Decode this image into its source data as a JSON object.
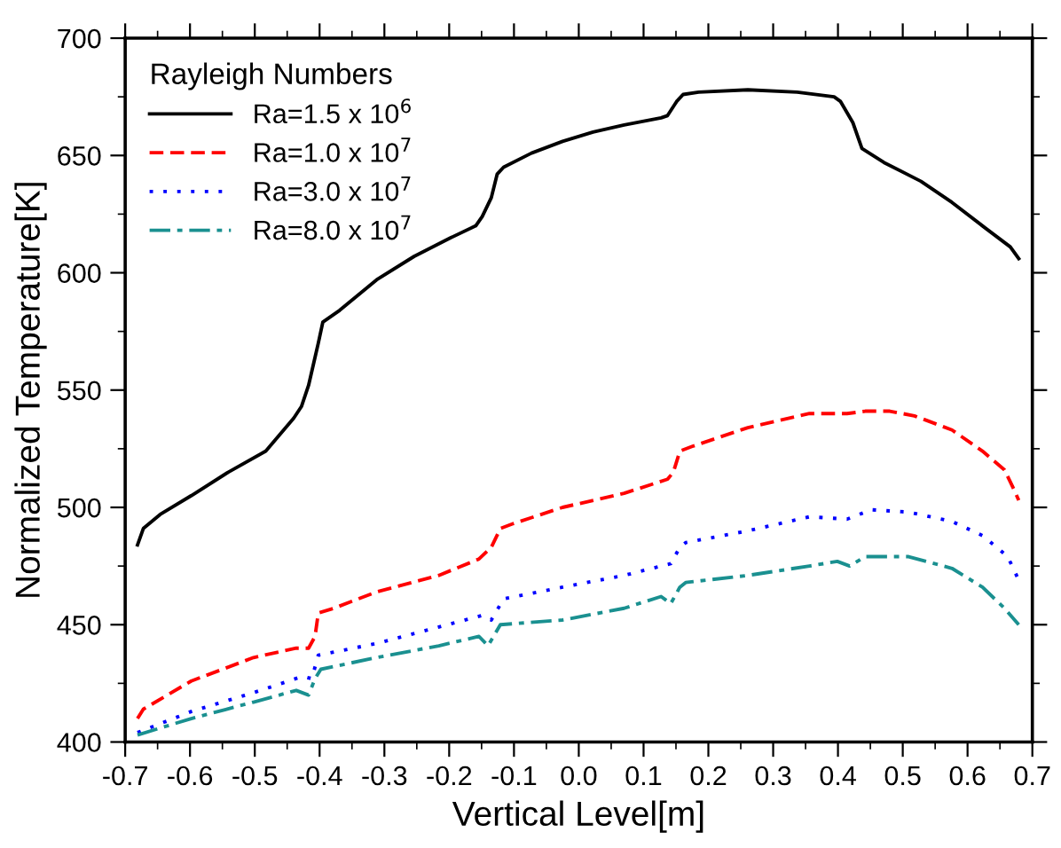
{
  "chart_data": {
    "type": "line",
    "xlabel": "Vertical Level[m]",
    "ylabel": "Normalized Temperature[K]",
    "legend_title": "Rayleigh Numbers",
    "legend": "top left",
    "grid": false,
    "marker": "none",
    "xlim": [
      -0.7,
      0.7
    ],
    "xticks": [
      -0.7,
      -0.6,
      -0.5,
      -0.4,
      -0.3,
      -0.2,
      -0.1,
      {
        "value": 0,
        "label": "0.0"
      },
      0.1,
      0.2,
      0.3,
      0.4,
      0.5,
      0.6,
      0.7
    ],
    "ylim": [
      400,
      700
    ],
    "yticks": [
      400,
      450,
      500,
      550,
      600,
      650,
      700
    ],
    "series": [
      {
        "name": "Ra=1.5 x 10$^{6}$",
        "color": "#000000",
        "line_style": "solid",
        "x": [
          -0.681,
          -0.672,
          -0.646,
          -0.598,
          -0.541,
          -0.483,
          -0.44,
          -0.428,
          -0.417,
          -0.407,
          -0.402,
          -0.395,
          -0.369,
          -0.312,
          -0.254,
          -0.197,
          -0.159,
          -0.149,
          -0.135,
          -0.126,
          -0.116,
          -0.073,
          -0.025,
          0.022,
          0.07,
          0.127,
          0.137,
          0.151,
          0.161,
          0.185,
          0.261,
          0.337,
          0.394,
          0.404,
          0.423,
          0.437,
          0.471,
          0.528,
          0.576,
          0.623,
          0.666,
          0.679
        ],
        "values": [
          484,
          491,
          497,
          505,
          515,
          524,
          538,
          543,
          552,
          564,
          570,
          579,
          584,
          597,
          607,
          615,
          620,
          624,
          632,
          642,
          645,
          651,
          656,
          660,
          663,
          666,
          667,
          673,
          676,
          677,
          678,
          677,
          675,
          673,
          664,
          653,
          647,
          639,
          630,
          620,
          611,
          606
        ]
      },
      {
        "name": "Ra=1.0 x 10$^{7}$",
        "color": "#ff0000",
        "line_style": "dashed",
        "x": [
          -0.681,
          -0.672,
          -0.598,
          -0.502,
          -0.436,
          -0.417,
          -0.407,
          -0.402,
          -0.378,
          -0.312,
          -0.216,
          -0.154,
          -0.135,
          -0.121,
          -0.102,
          -0.025,
          0.07,
          0.137,
          0.146,
          0.156,
          0.175,
          0.261,
          0.356,
          0.394,
          0.414,
          0.442,
          0.48,
          0.518,
          0.576,
          0.623,
          0.657,
          0.671,
          0.679
        ],
        "values": [
          410,
          414,
          426,
          436,
          440,
          440,
          445,
          455,
          457,
          464,
          471,
          478,
          483,
          491,
          493,
          500,
          506,
          512,
          515,
          524,
          526,
          534,
          540,
          540,
          540,
          541,
          541,
          539,
          533,
          524,
          516,
          508,
          503
        ]
      },
      {
        "name": "Ra=3.0 x 10$^{7}$",
        "color": "#0000ff",
        "line_style": "dotted",
        "x": [
          -0.681,
          -0.598,
          -0.502,
          -0.426,
          -0.412,
          -0.402,
          -0.312,
          -0.216,
          -0.149,
          -0.135,
          -0.116,
          -0.025,
          0.07,
          0.142,
          0.156,
          0.165,
          0.261,
          0.356,
          0.414,
          0.452,
          0.509,
          0.576,
          0.623,
          0.662,
          0.679
        ],
        "values": [
          404,
          413,
          421,
          428,
          427,
          437,
          442,
          449,
          454,
          452,
          461,
          466,
          471,
          476,
          483,
          485,
          490,
          496,
          495,
          499,
          498,
          494,
          488,
          479,
          469
        ]
      },
      {
        "name": "Ra=8.0 x 10$^{7}$",
        "color": "#1a9090",
        "line_style": "dashdot",
        "x": [
          -0.681,
          -0.598,
          -0.502,
          -0.436,
          -0.417,
          -0.407,
          -0.398,
          -0.312,
          -0.216,
          -0.154,
          -0.14,
          -0.121,
          -0.025,
          0.07,
          0.127,
          0.142,
          0.156,
          0.165,
          0.261,
          0.356,
          0.399,
          0.418,
          0.442,
          0.509,
          0.576,
          0.623,
          0.657,
          0.679
        ],
        "values": [
          403,
          410,
          417,
          422,
          420,
          427,
          431,
          436,
          441,
          445,
          441,
          450,
          452,
          457,
          462,
          459,
          466,
          468,
          471,
          475,
          477,
          475,
          479,
          479,
          474,
          466,
          457,
          450
        ]
      }
    ]
  }
}
